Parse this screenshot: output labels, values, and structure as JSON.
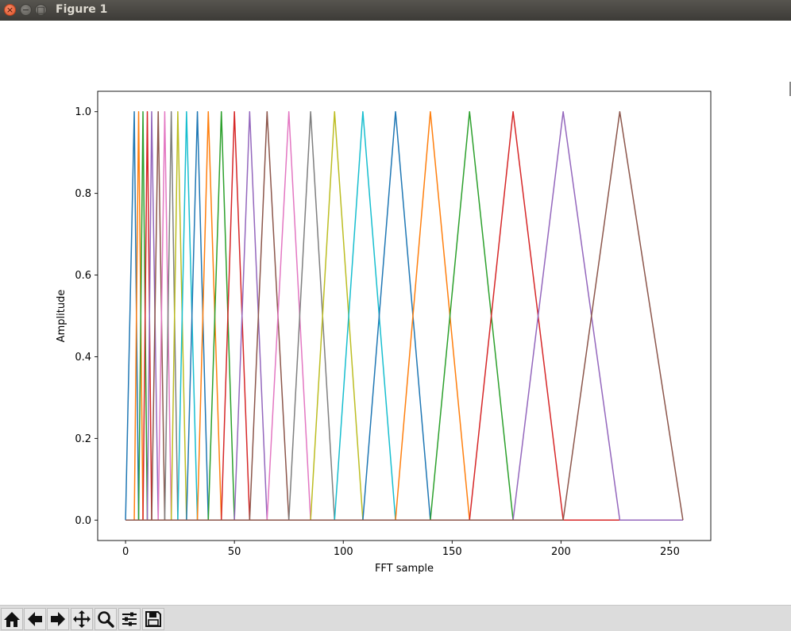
{
  "window": {
    "title": "Figure 1",
    "controls": [
      "close",
      "minimize",
      "maximize"
    ]
  },
  "toolbar": {
    "buttons": [
      {
        "name": "home-button",
        "icon": "home-icon"
      },
      {
        "name": "back-button",
        "icon": "arrow-left-icon"
      },
      {
        "name": "forward-button",
        "icon": "arrow-right-icon"
      },
      {
        "name": "pan-button",
        "icon": "move-icon"
      },
      {
        "name": "zoom-button",
        "icon": "magnifier-icon"
      },
      {
        "name": "subplots-button",
        "icon": "sliders-icon"
      },
      {
        "name": "save-button",
        "icon": "floppy-disk-icon"
      }
    ]
  },
  "chart_data": {
    "type": "line",
    "title": "",
    "xlabel": "FFT sample",
    "ylabel": "Amplitude",
    "xlim": [
      -12.8,
      268.8
    ],
    "ylim": [
      -0.05,
      1.05
    ],
    "xticks": [
      "0",
      "50",
      "100",
      "150",
      "200",
      "250"
    ],
    "yticks": [
      "0.0",
      "0.2",
      "0.4",
      "0.6",
      "0.8",
      "1.0"
    ],
    "grid": false,
    "legend": "none",
    "colors": [
      "#1f77b4",
      "#ff7f0e",
      "#2ca02c",
      "#d62728",
      "#9467bd",
      "#8c564b",
      "#e377c2",
      "#7f7f7f",
      "#bcbd22",
      "#17becf"
    ],
    "filter_points": [
      0,
      4,
      6,
      8,
      10,
      12,
      15,
      18,
      21,
      24,
      28,
      33,
      38,
      44,
      50,
      57,
      65,
      75,
      85,
      96,
      109,
      124,
      140,
      158,
      178,
      201,
      227,
      256
    ],
    "series": [
      {
        "peak": 4,
        "values": [
          [
            0,
            0
          ],
          [
            4,
            1
          ],
          [
            6,
            0
          ],
          [
            256,
            0
          ]
        ]
      },
      {
        "peak": 6,
        "values": [
          [
            0,
            0
          ],
          [
            4,
            0
          ],
          [
            6,
            1
          ],
          [
            8,
            0
          ],
          [
            256,
            0
          ]
        ]
      },
      {
        "peak": 8,
        "values": [
          [
            0,
            0
          ],
          [
            6,
            0
          ],
          [
            8,
            1
          ],
          [
            10,
            0
          ],
          [
            256,
            0
          ]
        ]
      },
      {
        "peak": 10,
        "values": [
          [
            0,
            0
          ],
          [
            8,
            0
          ],
          [
            10,
            1
          ],
          [
            12,
            0
          ],
          [
            256,
            0
          ]
        ]
      },
      {
        "peak": 12,
        "values": [
          [
            0,
            0
          ],
          [
            10,
            0
          ],
          [
            12,
            1
          ],
          [
            15,
            0
          ],
          [
            256,
            0
          ]
        ]
      },
      {
        "peak": 15,
        "values": [
          [
            0,
            0
          ],
          [
            12,
            0
          ],
          [
            15,
            1
          ],
          [
            18,
            0
          ],
          [
            256,
            0
          ]
        ]
      },
      {
        "peak": 18,
        "values": [
          [
            0,
            0
          ],
          [
            15,
            0
          ],
          [
            18,
            1
          ],
          [
            21,
            0
          ],
          [
            256,
            0
          ]
        ]
      },
      {
        "peak": 21,
        "values": [
          [
            0,
            0
          ],
          [
            18,
            0
          ],
          [
            21,
            1
          ],
          [
            24,
            0
          ],
          [
            256,
            0
          ]
        ]
      },
      {
        "peak": 24,
        "values": [
          [
            0,
            0
          ],
          [
            21,
            0
          ],
          [
            24,
            1
          ],
          [
            28,
            0
          ],
          [
            256,
            0
          ]
        ]
      },
      {
        "peak": 28,
        "values": [
          [
            0,
            0
          ],
          [
            24,
            0
          ],
          [
            28,
            1
          ],
          [
            33,
            0
          ],
          [
            256,
            0
          ]
        ]
      },
      {
        "peak": 33,
        "values": [
          [
            0,
            0
          ],
          [
            28,
            0
          ],
          [
            33,
            1
          ],
          [
            38,
            0
          ],
          [
            256,
            0
          ]
        ]
      },
      {
        "peak": 38,
        "values": [
          [
            0,
            0
          ],
          [
            33,
            0
          ],
          [
            38,
            1
          ],
          [
            44,
            0
          ],
          [
            256,
            0
          ]
        ]
      },
      {
        "peak": 44,
        "values": [
          [
            0,
            0
          ],
          [
            38,
            0
          ],
          [
            44,
            1
          ],
          [
            50,
            0
          ],
          [
            256,
            0
          ]
        ]
      },
      {
        "peak": 50,
        "values": [
          [
            0,
            0
          ],
          [
            44,
            0
          ],
          [
            50,
            1
          ],
          [
            57,
            0
          ],
          [
            256,
            0
          ]
        ]
      },
      {
        "peak": 57,
        "values": [
          [
            0,
            0
          ],
          [
            50,
            0
          ],
          [
            57,
            1
          ],
          [
            65,
            0
          ],
          [
            256,
            0
          ]
        ]
      },
      {
        "peak": 65,
        "values": [
          [
            0,
            0
          ],
          [
            57,
            0
          ],
          [
            65,
            1
          ],
          [
            75,
            0
          ],
          [
            256,
            0
          ]
        ]
      },
      {
        "peak": 75,
        "values": [
          [
            0,
            0
          ],
          [
            65,
            0
          ],
          [
            75,
            1
          ],
          [
            85,
            0
          ],
          [
            256,
            0
          ]
        ]
      },
      {
        "peak": 85,
        "values": [
          [
            0,
            0
          ],
          [
            75,
            0
          ],
          [
            85,
            1
          ],
          [
            96,
            0
          ],
          [
            256,
            0
          ]
        ]
      },
      {
        "peak": 96,
        "values": [
          [
            0,
            0
          ],
          [
            85,
            0
          ],
          [
            96,
            1
          ],
          [
            109,
            0
          ],
          [
            256,
            0
          ]
        ]
      },
      {
        "peak": 109,
        "values": [
          [
            0,
            0
          ],
          [
            96,
            0
          ],
          [
            109,
            1
          ],
          [
            124,
            0
          ],
          [
            256,
            0
          ]
        ]
      },
      {
        "peak": 124,
        "values": [
          [
            0,
            0
          ],
          [
            109,
            0
          ],
          [
            124,
            1
          ],
          [
            140,
            0
          ],
          [
            256,
            0
          ]
        ]
      },
      {
        "peak": 140,
        "values": [
          [
            0,
            0
          ],
          [
            124,
            0
          ],
          [
            140,
            1
          ],
          [
            158,
            0
          ],
          [
            256,
            0
          ]
        ]
      },
      {
        "peak": 158,
        "values": [
          [
            0,
            0
          ],
          [
            140,
            0
          ],
          [
            158,
            1
          ],
          [
            178,
            0
          ],
          [
            256,
            0
          ]
        ]
      },
      {
        "peak": 178,
        "values": [
          [
            0,
            0
          ],
          [
            158,
            0
          ],
          [
            178,
            1
          ],
          [
            201,
            0
          ],
          [
            256,
            0
          ]
        ]
      },
      {
        "peak": 201,
        "values": [
          [
            0,
            0
          ],
          [
            178,
            0
          ],
          [
            201,
            1
          ],
          [
            227,
            0
          ],
          [
            256,
            0
          ]
        ]
      },
      {
        "peak": 227,
        "values": [
          [
            0,
            0
          ],
          [
            201,
            0
          ],
          [
            227,
            1
          ],
          [
            256,
            0
          ]
        ]
      }
    ]
  }
}
